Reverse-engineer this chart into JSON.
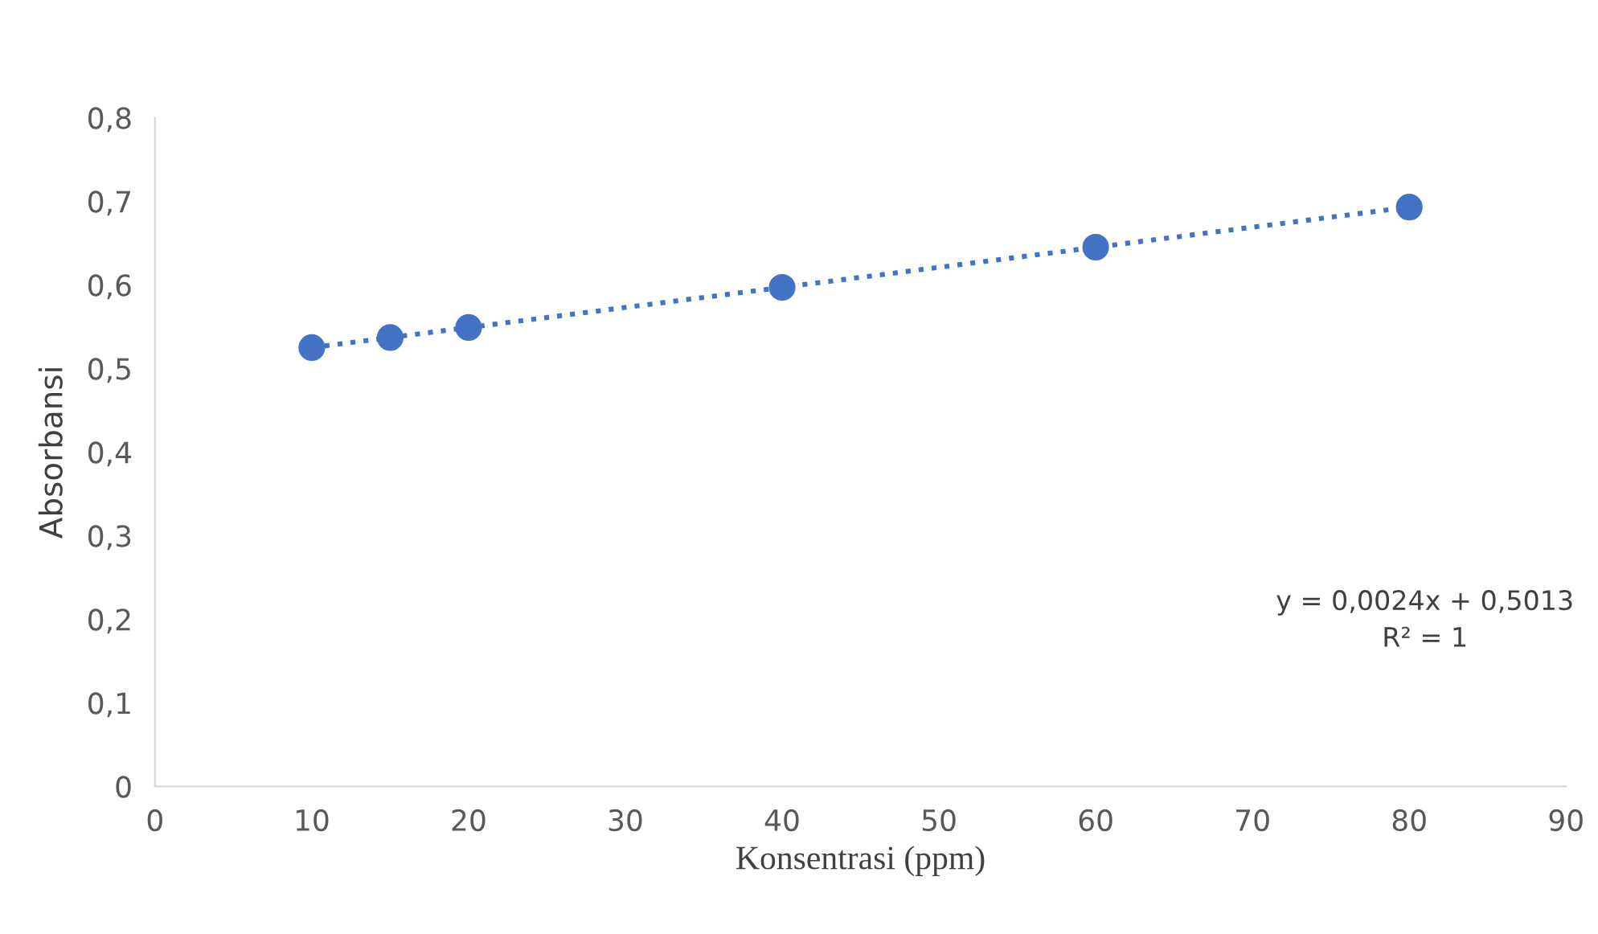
{
  "chart_data": {
    "type": "scatter",
    "xlabel": "Konsentrasi (ppm)",
    "ylabel": "Absorbansi",
    "series": [
      {
        "color": "#4472c4",
        "marker": "circle",
        "x": [
          10,
          15,
          20,
          40,
          60,
          80
        ],
        "values": [
          0.525,
          0.537,
          0.549,
          0.597,
          0.645,
          0.693
        ]
      },
      {
        "type": "line",
        "color": "#4472c4",
        "line_style": "dotted",
        "marker": "none",
        "x": [
          10,
          80
        ],
        "values": [
          0.525,
          0.693
        ]
      }
    ],
    "annotations": [
      "y = 0,0024x + 0,5013",
      "R² = 1"
    ],
    "xlim": [
      0,
      90
    ],
    "xticks": [
      0,
      10,
      20,
      30,
      40,
      50,
      60,
      70,
      80,
      90
    ],
    "ylim": [
      0,
      0.8
    ],
    "yticks": [
      0,
      {
        "value": 0.1,
        "label": "0,1"
      },
      {
        "value": 0.2,
        "label": "0,2"
      },
      {
        "value": 0.3,
        "label": "0,3"
      },
      {
        "value": 0.4,
        "label": "0,4"
      },
      {
        "value": 0.5,
        "label": "0,5"
      },
      {
        "value": 0.6,
        "label": "0,6"
      },
      {
        "value": 0.7,
        "label": "0,7"
      },
      {
        "value": 0.8,
        "label": "0,8"
      }
    ],
    "grid": false,
    "legend": false
  }
}
